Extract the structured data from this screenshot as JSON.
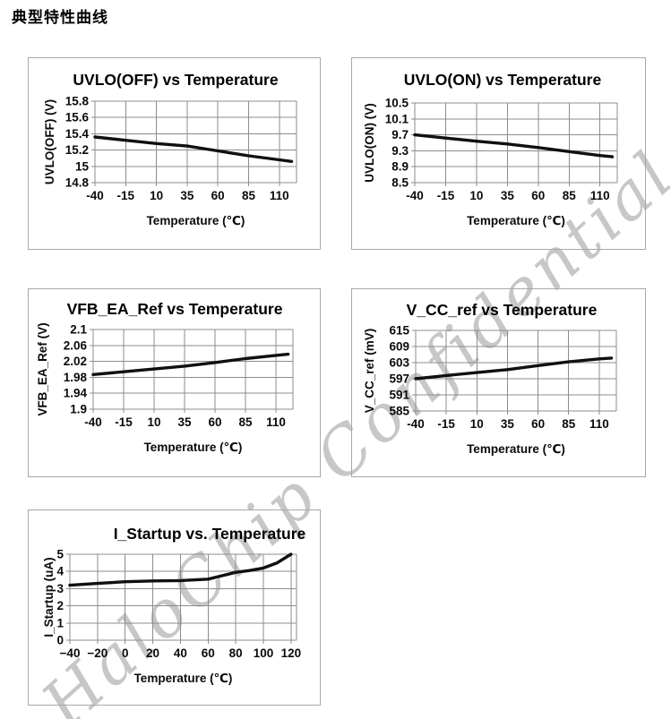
{
  "page": {
    "heading": "典型特性曲线"
  },
  "watermark": {
    "text": "HaloChip Confidential",
    "color": "#c7c7c7"
  },
  "chart_data": [
    {
      "id": "uvlo-off",
      "type": "line",
      "title": "UVLO(OFF) vs Temperature",
      "xlabel": "Temperature (℃)",
      "ylabel": "UVLO(OFF) (V)",
      "xlim": [
        -40,
        124
      ],
      "ylim": [
        14.8,
        15.8
      ],
      "xticks": [
        -40,
        -15,
        10,
        35,
        60,
        85,
        110
      ],
      "xtick_labels": [
        "-40",
        "-15",
        "10",
        "35",
        "60",
        "85",
        "110"
      ],
      "yticks": [
        14.8,
        15,
        15.2,
        15.4,
        15.6,
        15.8
      ],
      "ytick_labels": [
        "14.8",
        "15",
        "15.2",
        "15.4",
        "15.6",
        "15.8"
      ],
      "grid": true,
      "legend": false,
      "x": [
        -40,
        -15,
        10,
        35,
        60,
        85,
        110,
        120
      ],
      "y": [
        15.36,
        15.32,
        15.28,
        15.25,
        15.19,
        15.13,
        15.08,
        15.06
      ]
    },
    {
      "id": "uvlo-on",
      "type": "line",
      "title": "UVLO(ON) vs Temperature",
      "xlabel": "Temperature (℃)",
      "ylabel": "UVLO(ON) (V)",
      "xlim": [
        -40,
        124
      ],
      "ylim": [
        8.5,
        10.5
      ],
      "xticks": [
        -40,
        -15,
        10,
        35,
        60,
        85,
        110
      ],
      "xtick_labels": [
        "-40",
        "-15",
        "10",
        "35",
        "60",
        "85",
        "110"
      ],
      "yticks": [
        8.5,
        8.9,
        9.3,
        9.7,
        10.1,
        10.5
      ],
      "ytick_labels": [
        "8.5",
        "8.9",
        "9.3",
        "9.7",
        "10.1",
        "10.5"
      ],
      "grid": true,
      "legend": false,
      "x": [
        -40,
        -15,
        10,
        35,
        60,
        85,
        110,
        120
      ],
      "y": [
        9.7,
        9.62,
        9.54,
        9.47,
        9.38,
        9.28,
        9.18,
        9.15
      ]
    },
    {
      "id": "vfb-ea-ref",
      "type": "line",
      "title": "VFB_EA_Ref vs Temperature",
      "xlabel": "Temperature (℃)",
      "ylabel": "VFB_EA_Ref (V)",
      "xlim": [
        -40,
        124
      ],
      "ylim": [
        1.9,
        2.1
      ],
      "xticks": [
        -40,
        -15,
        10,
        35,
        60,
        85,
        110
      ],
      "xtick_labels": [
        "-40",
        "-15",
        "10",
        "35",
        "60",
        "85",
        "110"
      ],
      "yticks": [
        1.9,
        1.94,
        1.98,
        2.02,
        2.06,
        2.1
      ],
      "ytick_labels": [
        "1.9",
        "1.94",
        "1.98",
        "2.02",
        "2.06",
        "2.1"
      ],
      "grid": true,
      "legend": false,
      "x": [
        -40,
        -15,
        10,
        35,
        60,
        85,
        110,
        120
      ],
      "y": [
        1.987,
        1.994,
        2.001,
        2.008,
        2.017,
        2.027,
        2.035,
        2.038
      ]
    },
    {
      "id": "v-cc-ref",
      "type": "line",
      "title": "V_CC_ref vs Temperature",
      "xlabel": "Temperature (℃)",
      "ylabel": "V_CC_ref (mV)",
      "xlim": [
        -40,
        124
      ],
      "ylim": [
        585,
        615
      ],
      "xticks": [
        -40,
        -15,
        10,
        35,
        60,
        85,
        110
      ],
      "xtick_labels": [
        "-40",
        "-15",
        "10",
        "35",
        "60",
        "85",
        "110"
      ],
      "yticks": [
        585,
        591,
        597,
        603,
        609,
        615
      ],
      "ytick_labels": [
        "585",
        "591",
        "597",
        "603",
        "609",
        "615"
      ],
      "grid": true,
      "legend": false,
      "x": [
        -40,
        -15,
        10,
        35,
        60,
        85,
        110,
        120
      ],
      "y": [
        597,
        598.2,
        599.3,
        600.4,
        601.9,
        603.3,
        604.4,
        604.7
      ]
    },
    {
      "id": "i-startup",
      "type": "line",
      "title": "I_Startup vs. Temperature",
      "xlabel": "Temperature (℃)",
      "ylabel": "I_Startup (uA)",
      "xlim": [
        -40,
        124
      ],
      "ylim": [
        0,
        5
      ],
      "xticks": [
        -40,
        -20,
        0,
        20,
        40,
        60,
        80,
        100,
        120
      ],
      "xtick_labels": [
        "−40",
        "−20",
        "0",
        "20",
        "40",
        "60",
        "80",
        "100",
        "120"
      ],
      "yticks": [
        0,
        1,
        2,
        3,
        4,
        5
      ],
      "ytick_labels": [
        "0",
        "1",
        "2",
        "3",
        "4",
        "5"
      ],
      "grid": true,
      "legend": false,
      "x": [
        -40,
        -20,
        0,
        20,
        40,
        60,
        70,
        80,
        90,
        100,
        110,
        120
      ],
      "y": [
        3.2,
        3.3,
        3.4,
        3.45,
        3.47,
        3.55,
        3.75,
        3.95,
        4.05,
        4.2,
        4.5,
        5.0
      ]
    }
  ]
}
